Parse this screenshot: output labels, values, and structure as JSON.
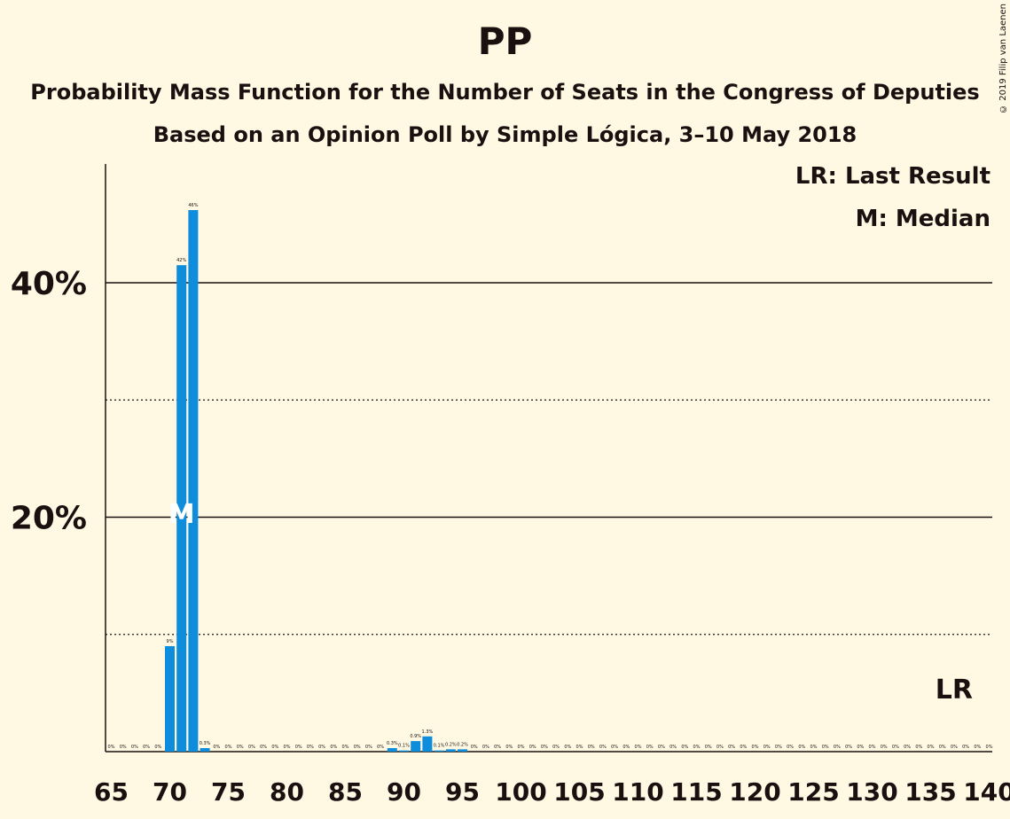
{
  "title": "PP",
  "subtitle1": "Probability Mass Function for the Number of Seats in the Congress of Deputies",
  "subtitle2": "Based on an Opinion Poll by Simple Lógica, 3–10 May 2018",
  "copyright": "© 2019 Filip van Laenen",
  "legend": {
    "last_result": "LR: Last Result",
    "median": "M: Median"
  },
  "colors": {
    "bar": "#0d8ddc",
    "background": "#fff8e3",
    "text": "#1b1010"
  },
  "chart_data": {
    "type": "bar",
    "xlim": [
      65,
      140
    ],
    "ylim": [
      0,
      50
    ],
    "y_ticks": [
      {
        "value": 10,
        "label": "",
        "style": "dotted"
      },
      {
        "value": 20,
        "label": "20%",
        "style": "solid"
      },
      {
        "value": 30,
        "label": "",
        "style": "dotted"
      },
      {
        "value": 40,
        "label": "40%",
        "style": "solid"
      }
    ],
    "x_tick_labels": [
      "65",
      "70",
      "75",
      "80",
      "85",
      "90",
      "95",
      "100",
      "105",
      "110",
      "115",
      "120",
      "125",
      "130",
      "135",
      "140"
    ],
    "median_seat": 71,
    "median_label": "M",
    "last_result_seat": 137,
    "last_result_label": "LR",
    "bars": [
      {
        "x": 65,
        "value": 0,
        "label": "0%"
      },
      {
        "x": 66,
        "value": 0,
        "label": "0%"
      },
      {
        "x": 67,
        "value": 0,
        "label": "0%"
      },
      {
        "x": 68,
        "value": 0,
        "label": "0%"
      },
      {
        "x": 69,
        "value": 0,
        "label": "0%"
      },
      {
        "x": 70,
        "value": 9.0,
        "label": "9%"
      },
      {
        "x": 71,
        "value": 41.5,
        "label": "42%"
      },
      {
        "x": 72,
        "value": 46.2,
        "label": "46%"
      },
      {
        "x": 73,
        "value": 0.3,
        "label": "0.3%"
      },
      {
        "x": 74,
        "value": 0,
        "label": "0%"
      },
      {
        "x": 75,
        "value": 0,
        "label": "0%"
      },
      {
        "x": 76,
        "value": 0,
        "label": "0%"
      },
      {
        "x": 77,
        "value": 0,
        "label": "0%"
      },
      {
        "x": 78,
        "value": 0,
        "label": "0%"
      },
      {
        "x": 79,
        "value": 0,
        "label": "0%"
      },
      {
        "x": 80,
        "value": 0,
        "label": "0%"
      },
      {
        "x": 81,
        "value": 0,
        "label": "0%"
      },
      {
        "x": 82,
        "value": 0,
        "label": "0%"
      },
      {
        "x": 83,
        "value": 0,
        "label": "0%"
      },
      {
        "x": 84,
        "value": 0,
        "label": "0%"
      },
      {
        "x": 85,
        "value": 0,
        "label": "0%"
      },
      {
        "x": 86,
        "value": 0,
        "label": "0%"
      },
      {
        "x": 87,
        "value": 0,
        "label": "0%"
      },
      {
        "x": 88,
        "value": 0,
        "label": "0%"
      },
      {
        "x": 89,
        "value": 0.3,
        "label": "0.3%"
      },
      {
        "x": 90,
        "value": 0.1,
        "label": "0.1%"
      },
      {
        "x": 91,
        "value": 0.9,
        "label": "0.9%"
      },
      {
        "x": 92,
        "value": 1.3,
        "label": "1.3%"
      },
      {
        "x": 93,
        "value": 0.1,
        "label": "0.1%"
      },
      {
        "x": 94,
        "value": 0.2,
        "label": "0.2%"
      },
      {
        "x": 95,
        "value": 0.2,
        "label": "0.2%"
      },
      {
        "x": 96,
        "value": 0,
        "label": "0%"
      },
      {
        "x": 97,
        "value": 0,
        "label": "0%"
      },
      {
        "x": 98,
        "value": 0,
        "label": "0%"
      },
      {
        "x": 99,
        "value": 0,
        "label": "0%"
      },
      {
        "x": 100,
        "value": 0,
        "label": "0%"
      },
      {
        "x": 101,
        "value": 0,
        "label": "0%"
      },
      {
        "x": 102,
        "value": 0,
        "label": "0%"
      },
      {
        "x": 103,
        "value": 0,
        "label": "0%"
      },
      {
        "x": 104,
        "value": 0,
        "label": "0%"
      },
      {
        "x": 105,
        "value": 0,
        "label": "0%"
      },
      {
        "x": 106,
        "value": 0,
        "label": "0%"
      },
      {
        "x": 107,
        "value": 0,
        "label": "0%"
      },
      {
        "x": 108,
        "value": 0,
        "label": "0%"
      },
      {
        "x": 109,
        "value": 0,
        "label": "0%"
      },
      {
        "x": 110,
        "value": 0,
        "label": "0%"
      },
      {
        "x": 111,
        "value": 0,
        "label": "0%"
      },
      {
        "x": 112,
        "value": 0,
        "label": "0%"
      },
      {
        "x": 113,
        "value": 0,
        "label": "0%"
      },
      {
        "x": 114,
        "value": 0,
        "label": "0%"
      },
      {
        "x": 115,
        "value": 0,
        "label": "0%"
      },
      {
        "x": 116,
        "value": 0,
        "label": "0%"
      },
      {
        "x": 117,
        "value": 0,
        "label": "0%"
      },
      {
        "x": 118,
        "value": 0,
        "label": "0%"
      },
      {
        "x": 119,
        "value": 0,
        "label": "0%"
      },
      {
        "x": 120,
        "value": 0,
        "label": "0%"
      },
      {
        "x": 121,
        "value": 0,
        "label": "0%"
      },
      {
        "x": 122,
        "value": 0,
        "label": "0%"
      },
      {
        "x": 123,
        "value": 0,
        "label": "0%"
      },
      {
        "x": 124,
        "value": 0,
        "label": "0%"
      },
      {
        "x": 125,
        "value": 0,
        "label": "0%"
      },
      {
        "x": 126,
        "value": 0,
        "label": "0%"
      },
      {
        "x": 127,
        "value": 0,
        "label": "0%"
      },
      {
        "x": 128,
        "value": 0,
        "label": "0%"
      },
      {
        "x": 129,
        "value": 0,
        "label": "0%"
      },
      {
        "x": 130,
        "value": 0,
        "label": "0%"
      },
      {
        "x": 131,
        "value": 0,
        "label": "0%"
      },
      {
        "x": 132,
        "value": 0,
        "label": "0%"
      },
      {
        "x": 133,
        "value": 0,
        "label": "0%"
      },
      {
        "x": 134,
        "value": 0,
        "label": "0%"
      },
      {
        "x": 135,
        "value": 0,
        "label": "0%"
      },
      {
        "x": 136,
        "value": 0,
        "label": "0%"
      },
      {
        "x": 137,
        "value": 0,
        "label": "0%"
      },
      {
        "x": 138,
        "value": 0,
        "label": "0%"
      },
      {
        "x": 139,
        "value": 0,
        "label": "0%"
      },
      {
        "x": 140,
        "value": 0,
        "label": "0%"
      }
    ]
  }
}
